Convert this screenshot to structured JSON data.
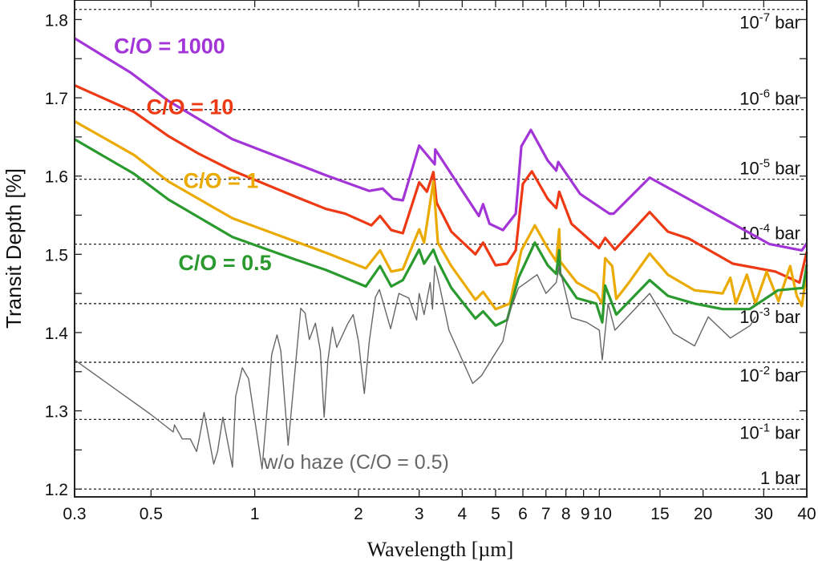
{
  "chart_data": {
    "type": "line",
    "xlabel": "Wavelength [µm]",
    "ylabel": "Transit Depth [%]",
    "xscale": "log",
    "xlim": [
      0.3,
      40
    ],
    "ylim": [
      1.19,
      1.825
    ],
    "grid": false,
    "x_ticks": [
      {
        "v": 0.3,
        "label": "0.3"
      },
      {
        "v": 0.5,
        "label": "0.5"
      },
      {
        "v": 1,
        "label": "1"
      },
      {
        "v": 2,
        "label": "2"
      },
      {
        "v": 3,
        "label": "3"
      },
      {
        "v": 4,
        "label": "4"
      },
      {
        "v": 5,
        "label": "5"
      },
      {
        "v": 6,
        "label": "6"
      },
      {
        "v": 7,
        "label": "7"
      },
      {
        "v": 8,
        "label": "8"
      },
      {
        "v": 9,
        "label": "9"
      },
      {
        "v": 10,
        "label": "10"
      },
      {
        "v": 15,
        "label": "15"
      },
      {
        "v": 20,
        "label": "20"
      },
      {
        "v": 30,
        "label": "30"
      },
      {
        "v": 40,
        "label": "40"
      }
    ],
    "y_ticks": [
      {
        "v": 1.2,
        "label": "1.2"
      },
      {
        "v": 1.3,
        "label": "1.3"
      },
      {
        "v": 1.4,
        "label": "1.4"
      },
      {
        "v": 1.5,
        "label": "1.5"
      },
      {
        "v": 1.6,
        "label": "1.6"
      },
      {
        "v": 1.7,
        "label": "1.7"
      },
      {
        "v": 1.8,
        "label": "1.8"
      }
    ],
    "pressure_levels": [
      {
        "depth": 1.813,
        "base": "10",
        "exp": "-7",
        "unit": " bar"
      },
      {
        "depth": 1.685,
        "base": "10",
        "exp": "-6",
        "unit": " bar"
      },
      {
        "depth": 1.596,
        "base": "10",
        "exp": "-5",
        "unit": " bar"
      },
      {
        "depth": 1.513,
        "base": "10",
        "exp": "-4",
        "unit": " bar"
      },
      {
        "depth": 1.437,
        "base": "10",
        "exp": "-3",
        "unit": " bar"
      },
      {
        "depth": 1.362,
        "base": "10",
        "exp": "-2",
        "unit": " bar"
      },
      {
        "depth": 1.289,
        "base": "10",
        "exp": "-1",
        "unit": " bar"
      },
      {
        "depth": 1.2,
        "base": "1",
        "exp": "",
        "unit": " bar"
      }
    ],
    "series": [
      {
        "name": "C/O = 1000",
        "color": "#A335D8",
        "width": 3.2,
        "x": [
          0.3,
          0.437,
          0.562,
          0.862,
          1.61,
          2.15,
          2.35,
          2.52,
          2.69,
          3.0,
          3.33,
          3.34,
          4.47,
          4.6,
          4.8,
          5.25,
          5.72,
          5.94,
          6.33,
          7.08,
          7.5,
          7.6,
          8.8,
          10.7,
          11.0,
          14.0,
          17.6,
          31.2,
          38.7,
          40
        ],
        "y": [
          1.776,
          1.732,
          1.696,
          1.647,
          1.601,
          1.581,
          1.584,
          1.571,
          1.569,
          1.639,
          1.615,
          1.634,
          1.549,
          1.564,
          1.539,
          1.531,
          1.552,
          1.638,
          1.659,
          1.62,
          1.607,
          1.618,
          1.577,
          1.552,
          1.552,
          1.598,
          1.574,
          1.513,
          1.505,
          1.514
        ]
      },
      {
        "name": "C/O = 10",
        "color": "#EE3A14",
        "width": 3.2,
        "x": [
          0.3,
          0.446,
          0.562,
          0.685,
          0.862,
          1.34,
          1.61,
          1.83,
          2.18,
          2.31,
          2.49,
          2.69,
          3.0,
          3.16,
          3.3,
          3.37,
          3.72,
          4.37,
          4.6,
          5.0,
          5.4,
          5.72,
          6.0,
          6.37,
          7.08,
          7.5,
          7.65,
          8.3,
          9.97,
          10.4,
          11.1,
          14.0,
          15.8,
          18.2,
          24.4,
          32.4,
          38.1,
          40
        ],
        "y": [
          1.716,
          1.682,
          1.651,
          1.629,
          1.607,
          1.572,
          1.558,
          1.552,
          1.537,
          1.549,
          1.531,
          1.527,
          1.592,
          1.58,
          1.605,
          1.566,
          1.529,
          1.5,
          1.515,
          1.486,
          1.488,
          1.505,
          1.59,
          1.606,
          1.571,
          1.559,
          1.58,
          1.539,
          1.508,
          1.521,
          1.506,
          1.554,
          1.529,
          1.52,
          1.488,
          1.478,
          1.464,
          1.503
        ]
      },
      {
        "name": "C/O = 1",
        "color": "#EBAA00",
        "width": 3.2,
        "x": [
          0.3,
          0.446,
          0.562,
          0.862,
          1.32,
          1.61,
          2.1,
          2.31,
          2.49,
          2.69,
          3.0,
          3.1,
          3.3,
          3.4,
          3.72,
          4.37,
          4.6,
          5.0,
          5.5,
          5.94,
          6.5,
          7.08,
          7.5,
          7.65,
          7.7,
          8.6,
          9.8,
          10.2,
          10.4,
          10.9,
          11.2,
          12.1,
          14.0,
          15.8,
          18.9,
          22.8,
          24,
          24.9,
          26.8,
          28.4,
          30.6,
          33.1,
          35.8,
          37.4,
          38.7,
          40
        ],
        "y": [
          1.67,
          1.627,
          1.593,
          1.546,
          1.516,
          1.502,
          1.482,
          1.505,
          1.478,
          1.481,
          1.532,
          1.515,
          1.593,
          1.515,
          1.485,
          1.442,
          1.452,
          1.43,
          1.437,
          1.505,
          1.537,
          1.508,
          1.491,
          1.532,
          1.491,
          1.464,
          1.45,
          1.437,
          1.495,
          1.485,
          1.443,
          1.462,
          1.501,
          1.474,
          1.454,
          1.45,
          1.47,
          1.437,
          1.474,
          1.437,
          1.478,
          1.44,
          1.485,
          1.447,
          1.434,
          1.478
        ]
      },
      {
        "name": "C/O = 0.5",
        "color": "#2A9A2E",
        "width": 3.2,
        "x": [
          0.3,
          0.446,
          0.562,
          0.862,
          1.3,
          1.61,
          2.1,
          2.31,
          2.49,
          2.69,
          3.0,
          3.1,
          3.3,
          3.4,
          3.72,
          4.37,
          4.6,
          5.0,
          5.4,
          5.83,
          6.5,
          7.08,
          7.5,
          7.65,
          7.7,
          8.6,
          9.8,
          10.2,
          10.4,
          11.2,
          14.0,
          15.8,
          18.9,
          22.8,
          27.3,
          33,
          39,
          40
        ],
        "y": [
          1.647,
          1.603,
          1.57,
          1.522,
          1.494,
          1.48,
          1.459,
          1.485,
          1.459,
          1.467,
          1.506,
          1.488,
          1.506,
          1.491,
          1.457,
          1.418,
          1.427,
          1.409,
          1.416,
          1.47,
          1.515,
          1.486,
          1.475,
          1.505,
          1.475,
          1.444,
          1.437,
          1.413,
          1.46,
          1.423,
          1.467,
          1.447,
          1.437,
          1.43,
          1.43,
          1.454,
          1.457,
          1.487
        ]
      },
      {
        "name": "w/o haze (C/O = 0.5)",
        "color": "#666666",
        "width": 1.4,
        "x": [
          0.3,
          0.497,
          0.58,
          0.585,
          0.616,
          0.65,
          0.678,
          0.69,
          0.713,
          0.76,
          0.78,
          0.808,
          0.862,
          0.88,
          0.92,
          0.96,
          1.05,
          1.12,
          1.16,
          1.19,
          1.25,
          1.36,
          1.4,
          1.44,
          1.5,
          1.55,
          1.59,
          1.63,
          1.68,
          1.73,
          1.86,
          1.93,
          2.0,
          2.08,
          2.15,
          2.24,
          2.3,
          2.48,
          2.62,
          2.8,
          2.95,
          3.0,
          3.1,
          3.23,
          3.28,
          3.33,
          3.45,
          3.66,
          3.9,
          4.29,
          4.55,
          4.9,
          5.25,
          5.45,
          5.83,
          6.6,
          7.0,
          7.5,
          7.65,
          8.3,
          9.2,
          10.0,
          10.2,
          10.6,
          11.1,
          14.0,
          16.4,
          18.9,
          20.7,
          24,
          27.4,
          28.4
        ],
        "y": [
          1.365,
          1.296,
          1.273,
          1.282,
          1.264,
          1.264,
          1.248,
          1.264,
          1.298,
          1.232,
          1.248,
          1.292,
          1.228,
          1.318,
          1.355,
          1.341,
          1.226,
          1.372,
          1.397,
          1.377,
          1.256,
          1.431,
          1.425,
          1.391,
          1.412,
          1.377,
          1.292,
          1.364,
          1.407,
          1.381,
          1.411,
          1.423,
          1.389,
          1.322,
          1.389,
          1.445,
          1.455,
          1.405,
          1.45,
          1.444,
          1.416,
          1.45,
          1.423,
          1.464,
          1.43,
          1.485,
          1.457,
          1.403,
          1.376,
          1.335,
          1.345,
          1.368,
          1.389,
          1.423,
          1.457,
          1.474,
          1.45,
          1.464,
          1.485,
          1.419,
          1.413,
          1.403,
          1.365,
          1.437,
          1.403,
          1.45,
          1.399,
          1.383,
          1.42,
          1.393,
          1.409,
          1.42
        ]
      }
    ],
    "annotations": [
      {
        "text": "C/O = 1000",
        "color": "#A335D8",
        "x": 0.39,
        "y": 1.757,
        "cls": "ann"
      },
      {
        "text": "C/O = 10",
        "color": "#EE3A14",
        "x": 0.485,
        "y": 1.679,
        "cls": "ann"
      },
      {
        "text": "C/O = 1",
        "color": "#EBAA00",
        "x": 0.62,
        "y": 1.585,
        "cls": "ann"
      },
      {
        "text": "C/O = 0.5",
        "color": "#2A9A2E",
        "x": 0.6,
        "y": 1.48,
        "cls": "ann"
      },
      {
        "text": "w/o haze (C/O = 0.5)",
        "color": "#666666",
        "x": 1.06,
        "y": 1.226,
        "cls": "annh"
      }
    ]
  }
}
